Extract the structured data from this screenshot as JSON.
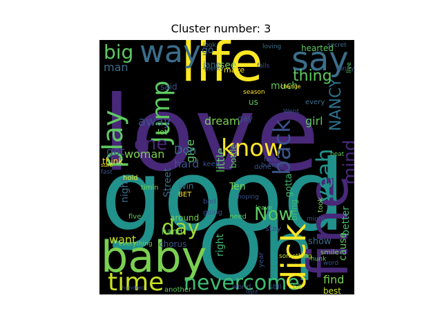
{
  "figure": {
    "title": "Cluster number: 3",
    "background": "#ffffff",
    "cloud_background": "#000000"
  },
  "palette": {
    "purple": "#482878",
    "teal": "#21918c",
    "green": "#5ec962",
    "yellow": "#fde725",
    "blue": "#3b528b",
    "dark_purple": "#440154",
    "sea": "#2c728e"
  },
  "words": [
    {
      "text": "love",
      "color": "#482878"
    },
    {
      "text": "good",
      "color": "#21918c"
    },
    {
      "text": "Oh",
      "color": "#21918c"
    },
    {
      "text": "baby",
      "color": "#7ad151"
    },
    {
      "text": "life",
      "color": "#fde725"
    },
    {
      "text": "fine",
      "color": "#482878"
    },
    {
      "text": "say",
      "color": "#3b6e8c"
    },
    {
      "text": "way",
      "color": "#3b6e8c"
    },
    {
      "text": "time",
      "color": "#c8e020"
    },
    {
      "text": "nevercome",
      "color": "#3fbc73"
    },
    {
      "text": "dick",
      "color": "#fde725"
    },
    {
      "text": "play",
      "color": "#5ec962"
    },
    {
      "text": "know",
      "color": "#fde725"
    },
    {
      "text": "Jump",
      "color": "#5ec962"
    },
    {
      "text": "day",
      "color": "#a0da39"
    },
    {
      "text": "back",
      "color": "#3b528b"
    },
    {
      "text": "one",
      "color": "#482878"
    },
    {
      "text": "yeah",
      "color": "#21918c"
    },
    {
      "text": "big",
      "color": "#5ec962"
    },
    {
      "text": "Now",
      "color": "#5ec962"
    },
    {
      "text": "mind",
      "color": "#482878"
    },
    {
      "text": "NANCY",
      "color": "#2c728e"
    },
    {
      "text": "thing",
      "color": "#5ec962"
    },
    {
      "text": "find",
      "color": "#7ad151"
    },
    {
      "text": "want",
      "color": "#c8e020"
    },
    {
      "text": "dream",
      "color": "#7ad151"
    },
    {
      "text": "little",
      "color": "#5ec962"
    },
    {
      "text": "give",
      "color": "#5ec962"
    },
    {
      "text": "away",
      "color": "#3b528b"
    },
    {
      "text": "hard",
      "color": "#3b528b"
    },
    {
      "text": "woman",
      "color": "#7ad151"
    },
    {
      "text": "Don",
      "color": "#3b6e8c"
    },
    {
      "text": "got",
      "color": "#3b528b"
    },
    {
      "text": "girl",
      "color": "#5ec962"
    },
    {
      "text": "better",
      "color": "#3fbc73"
    },
    {
      "text": "cause",
      "color": "#5ec962"
    },
    {
      "text": "right",
      "color": "#3fbc73"
    },
    {
      "text": "show",
      "color": "#3b6e8c"
    },
    {
      "text": "man",
      "color": "#3b6e8c"
    },
    {
      "text": "see",
      "color": "#7ad151"
    },
    {
      "text": "go",
      "color": "#3b6e8c"
    },
    {
      "text": "jane",
      "color": "#3b6e8c"
    },
    {
      "text": "hearted",
      "color": "#5ec962"
    },
    {
      "text": "much",
      "color": "#5ec962"
    },
    {
      "text": "us",
      "color": "#5ec962"
    },
    {
      "text": "Ten",
      "color": "#7ad151"
    },
    {
      "text": "Win",
      "color": "#3b6e8c"
    },
    {
      "text": "night",
      "color": "#3b6e8c"
    },
    {
      "text": "Street",
      "color": "#3b6e8c"
    },
    {
      "text": "gotta",
      "color": "#3fbc73"
    },
    {
      "text": "bring",
      "color": "#3fbc73"
    },
    {
      "text": "took",
      "color": "#7ad151"
    },
    {
      "text": "best",
      "color": "#c8e020"
    },
    {
      "text": "chorus",
      "color": "#3b528b"
    },
    {
      "text": "make",
      "color": "#fde725"
    },
    {
      "text": "gay",
      "color": "#3b528b"
    },
    {
      "text": "said",
      "color": "#3b528b"
    },
    {
      "text": "bottle",
      "color": "#5ec962"
    },
    {
      "text": "bad",
      "color": "#3b528b"
    },
    {
      "text": "going",
      "color": "#3b528b"
    },
    {
      "text": "around",
      "color": "#7ad151"
    },
    {
      "text": "hand",
      "color": "#5ec962"
    },
    {
      "text": "let",
      "color": "#7ad151"
    },
    {
      "text": "think",
      "color": "#fde725"
    },
    {
      "text": "timin",
      "color": "#7ad151"
    },
    {
      "text": "five",
      "color": "#5ec962"
    },
    {
      "text": "smile",
      "color": "#7ad151"
    },
    {
      "text": "BET",
      "color": "#fde725"
    },
    {
      "text": "hold",
      "color": "#fde725"
    },
    {
      "text": "stay",
      "color": "#3b528b"
    },
    {
      "text": "leave",
      "color": "#5ec962"
    },
    {
      "text": "done",
      "color": "#3b528b"
    },
    {
      "text": "need",
      "color": "#5ec962"
    },
    {
      "text": "keep",
      "color": "#3b528b"
    },
    {
      "text": "world",
      "color": "#3b528b"
    },
    {
      "text": "still",
      "color": "#3b528b"
    },
    {
      "text": "another",
      "color": "#5ec962"
    },
    {
      "text": "bit",
      "color": "#5ec962"
    },
    {
      "text": "beat",
      "color": "#5ec962"
    },
    {
      "text": "every",
      "color": "#3b6e8c"
    },
    {
      "text": "Went",
      "color": "#3b528b"
    },
    {
      "text": "change",
      "color": "#fde725"
    },
    {
      "text": "look",
      "color": "#3b6e8c"
    },
    {
      "text": "secret",
      "color": "#3b6e8c"
    },
    {
      "text": "loving",
      "color": "#3b6e8c"
    },
    {
      "text": "plenty",
      "color": "#3b6e8c"
    },
    {
      "text": "season",
      "color": "#fde725"
    },
    {
      "text": "something",
      "color": "#c8e020"
    },
    {
      "text": "everything",
      "color": "#7ad151"
    },
    {
      "text": "hunk",
      "color": "#5ec962"
    },
    {
      "text": "year",
      "color": "#3b528b"
    },
    {
      "text": "word",
      "color": "#3b528b"
    },
    {
      "text": "face",
      "color": "#3b528b"
    },
    {
      "text": "fast",
      "color": "#3b528b"
    },
    {
      "text": "sure",
      "color": "#fde725"
    },
    {
      "text": "might",
      "color": "#3b528b"
    },
    {
      "text": "falls",
      "color": "#3b528b"
    },
    {
      "text": "sunny",
      "color": "#3b528b"
    },
    {
      "text": "hoping",
      "color": "#3b528b"
    },
    {
      "text": "burned",
      "color": "#3b528b"
    },
    {
      "text": "hundred",
      "color": "#3b528b"
    },
    {
      "text": "light",
      "color": "#3b528b"
    },
    {
      "text": "live",
      "color": "#5ec962"
    }
  ]
}
